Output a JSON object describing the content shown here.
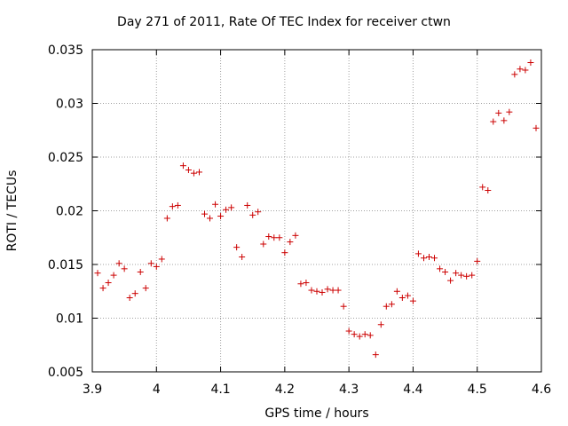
{
  "chart_data": {
    "type": "scatter",
    "title": "Day 271 of 2011, Rate Of TEC Index for receiver ctwn",
    "xlabel": "GPS time / hours",
    "ylabel": "ROTI / TECUs",
    "xlim": [
      3.9,
      4.6
    ],
    "ylim": [
      0.005,
      0.035
    ],
    "xticks": [
      "3.9",
      "4",
      "4.1",
      "4.2",
      "4.3",
      "4.4",
      "4.5",
      "4.6"
    ],
    "yticks": [
      "0.005",
      "0.01",
      "0.015",
      "0.02",
      "0.025",
      "0.03",
      "0.035"
    ],
    "grid": true,
    "marker": "+",
    "color": "#cc0000",
    "series": [
      {
        "points": [
          [
            3.9083,
            0.0142
          ],
          [
            3.9167,
            0.0128
          ],
          [
            3.925,
            0.0133
          ],
          [
            3.9333,
            0.014
          ],
          [
            3.9417,
            0.0151
          ],
          [
            3.95,
            0.0146
          ],
          [
            3.9583,
            0.0119
          ],
          [
            3.9667,
            0.0123
          ],
          [
            3.975,
            0.0143
          ],
          [
            3.9833,
            0.0128
          ],
          [
            3.9917,
            0.0151
          ],
          [
            4.0,
            0.0148
          ],
          [
            4.0083,
            0.0155
          ],
          [
            4.0167,
            0.0193
          ],
          [
            4.025,
            0.0204
          ],
          [
            4.0333,
            0.0205
          ],
          [
            4.0417,
            0.0242
          ],
          [
            4.05,
            0.0238
          ],
          [
            4.0583,
            0.0235
          ],
          [
            4.0667,
            0.0236
          ],
          [
            4.075,
            0.0197
          ],
          [
            4.0833,
            0.0193
          ],
          [
            4.0917,
            0.0206
          ],
          [
            4.1,
            0.0195
          ],
          [
            4.1083,
            0.0201
          ],
          [
            4.1167,
            0.0203
          ],
          [
            4.125,
            0.0166
          ],
          [
            4.1333,
            0.0157
          ],
          [
            4.1417,
            0.0205
          ],
          [
            4.15,
            0.0196
          ],
          [
            4.1583,
            0.0199
          ],
          [
            4.1667,
            0.0169
          ],
          [
            4.175,
            0.0176
          ],
          [
            4.1833,
            0.0175
          ],
          [
            4.1917,
            0.0175
          ],
          [
            4.2,
            0.0161
          ],
          [
            4.2083,
            0.0171
          ],
          [
            4.2167,
            0.0177
          ],
          [
            4.225,
            0.0132
          ],
          [
            4.2333,
            0.0133
          ],
          [
            4.2417,
            0.0126
          ],
          [
            4.25,
            0.0125
          ],
          [
            4.2583,
            0.0124
          ],
          [
            4.2667,
            0.0127
          ],
          [
            4.275,
            0.0126
          ],
          [
            4.2833,
            0.0126
          ],
          [
            4.2917,
            0.0111
          ],
          [
            4.3,
            0.0088
          ],
          [
            4.3083,
            0.0085
          ],
          [
            4.3167,
            0.0083
          ],
          [
            4.325,
            0.0085
          ],
          [
            4.3333,
            0.0084
          ],
          [
            4.3417,
            0.0066
          ],
          [
            4.35,
            0.0094
          ],
          [
            4.3583,
            0.0111
          ],
          [
            4.3667,
            0.0113
          ],
          [
            4.375,
            0.0125
          ],
          [
            4.3833,
            0.0119
          ],
          [
            4.3917,
            0.0121
          ],
          [
            4.4,
            0.0116
          ],
          [
            4.4083,
            0.016
          ],
          [
            4.4167,
            0.0156
          ],
          [
            4.425,
            0.0157
          ],
          [
            4.4333,
            0.0156
          ],
          [
            4.4417,
            0.0146
          ],
          [
            4.45,
            0.0143
          ],
          [
            4.4583,
            0.0135
          ],
          [
            4.4667,
            0.0142
          ],
          [
            4.475,
            0.014
          ],
          [
            4.4833,
            0.0139
          ],
          [
            4.4917,
            0.014
          ],
          [
            4.5,
            0.0153
          ],
          [
            4.5083,
            0.0222
          ],
          [
            4.5167,
            0.0219
          ],
          [
            4.525,
            0.0283
          ],
          [
            4.5333,
            0.0291
          ],
          [
            4.5417,
            0.0284
          ],
          [
            4.55,
            0.0292
          ],
          [
            4.5583,
            0.0327
          ],
          [
            4.5667,
            0.0332
          ],
          [
            4.575,
            0.0331
          ],
          [
            4.5833,
            0.0338
          ],
          [
            4.5917,
            0.0277
          ]
        ]
      }
    ]
  }
}
